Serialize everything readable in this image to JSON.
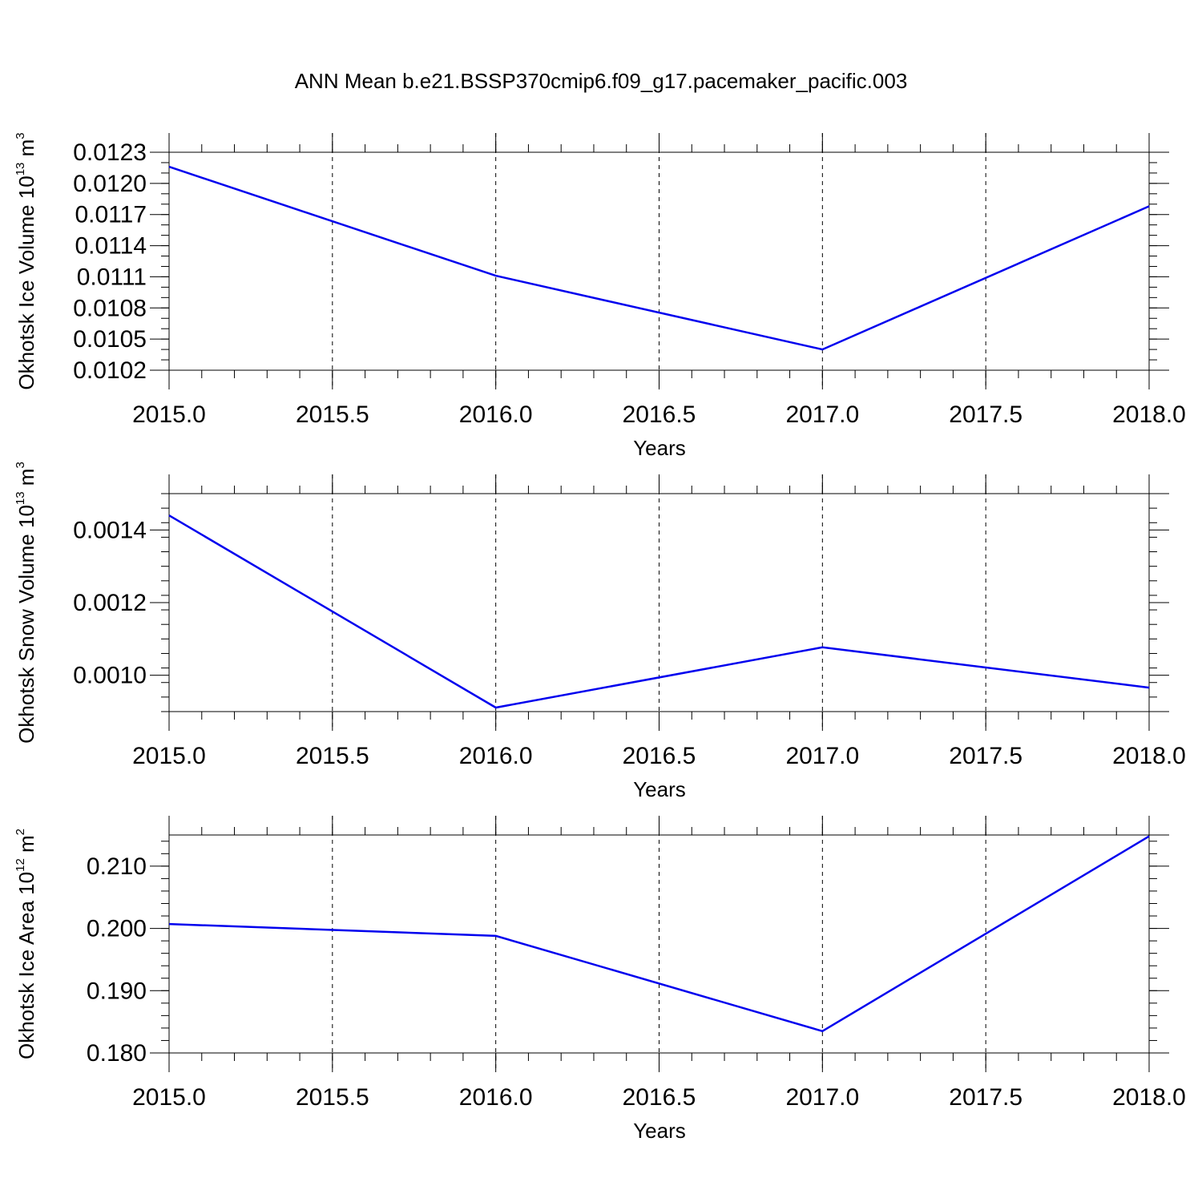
{
  "title": "ANN Mean b.e21.BSSP370cmip6.f09_g17.pacemaker_pacific.003",
  "line_color": "#0000ee",
  "chart_data": [
    {
      "type": "line",
      "xlabel": "Years",
      "ylabel_text": "Okhotsk Ice Volume 10",
      "ylabel_exp": "13",
      "ylabel_unit": "m",
      "ylabel_unit_exp": "3",
      "xlim": [
        2015.0,
        2018.0
      ],
      "ylim": [
        0.0102,
        0.0123
      ],
      "x_ticks": [
        2015.0,
        2015.5,
        2016.0,
        2016.5,
        2017.0,
        2017.5,
        2018.0
      ],
      "x_tick_labels": [
        "2015.0",
        "2015.5",
        "2016.0",
        "2016.5",
        "2017.0",
        "2017.5",
        "2018.0"
      ],
      "y_ticks": [
        0.0102,
        0.0105,
        0.0108,
        0.0111,
        0.0114,
        0.0117,
        0.012,
        0.0123
      ],
      "y_tick_labels": [
        "0.0102",
        "0.0105",
        "0.0108",
        "0.0111",
        "0.0114",
        "0.0117",
        "0.0120",
        "0.0123"
      ],
      "y_minor_step": 0.0001,
      "x": [
        2015.0,
        2016.0,
        2017.0,
        2018.0
      ],
      "y": [
        0.01216,
        0.01111,
        0.0104,
        0.01178
      ]
    },
    {
      "type": "line",
      "xlabel": "Years",
      "ylabel_text": "Okhotsk Snow Volume 10",
      "ylabel_exp": "13",
      "ylabel_unit": "m",
      "ylabel_unit_exp": "3",
      "xlim": [
        2015.0,
        2018.0
      ],
      "ylim": [
        0.0009,
        0.0015
      ],
      "x_ticks": [
        2015.0,
        2015.5,
        2016.0,
        2016.5,
        2017.0,
        2017.5,
        2018.0
      ],
      "x_tick_labels": [
        "2015.0",
        "2015.5",
        "2016.0",
        "2016.5",
        "2017.0",
        "2017.5",
        "2018.0"
      ],
      "y_ticks": [
        0.001,
        0.0012,
        0.0014
      ],
      "y_tick_labels": [
        "0.0010",
        "0.0012",
        "0.0014"
      ],
      "y_minor_step": 4e-05,
      "x": [
        2015.0,
        2016.0,
        2017.0,
        2018.0
      ],
      "y": [
        0.00144,
        0.000911,
        0.001077,
        0.000966
      ]
    },
    {
      "type": "line",
      "xlabel": "Years",
      "ylabel_text": "Okhotsk Ice Area 10",
      "ylabel_exp": "12",
      "ylabel_unit": "m",
      "ylabel_unit_exp": "2",
      "xlim": [
        2015.0,
        2018.0
      ],
      "ylim": [
        0.18,
        0.215
      ],
      "x_ticks": [
        2015.0,
        2015.5,
        2016.0,
        2016.5,
        2017.0,
        2017.5,
        2018.0
      ],
      "x_tick_labels": [
        "2015.0",
        "2015.5",
        "2016.0",
        "2016.5",
        "2017.0",
        "2017.5",
        "2018.0"
      ],
      "y_ticks": [
        0.18,
        0.19,
        0.2,
        0.21
      ],
      "y_tick_labels": [
        "0.180",
        "0.190",
        "0.200",
        "0.210"
      ],
      "y_minor_step": 0.002,
      "x": [
        2015.0,
        2016.0,
        2017.0,
        2018.0
      ],
      "y": [
        0.2007,
        0.1988,
        0.1835,
        0.2148
      ]
    }
  ]
}
